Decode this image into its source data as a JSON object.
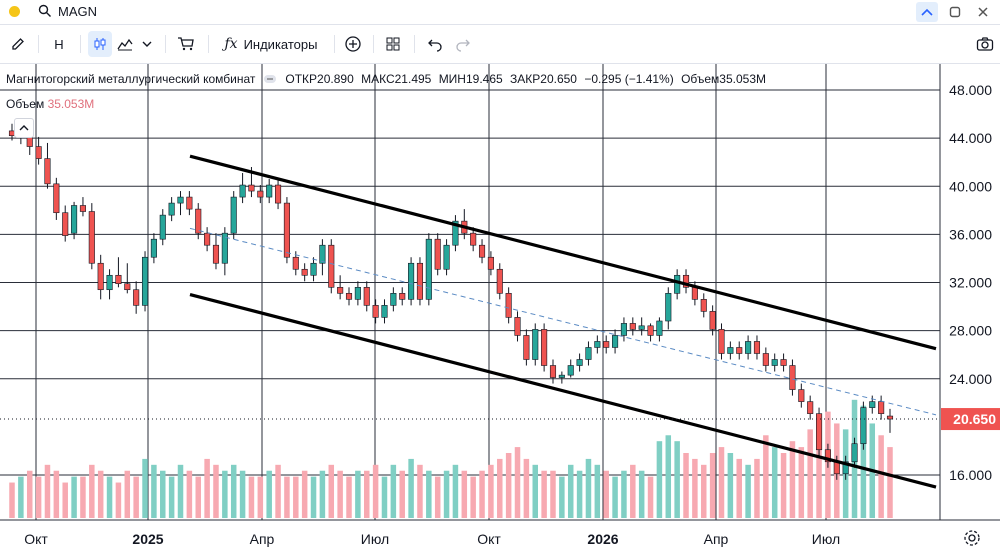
{
  "header": {
    "symbol": "MAGN"
  },
  "toolbar": {
    "interval": "H",
    "indicators_label": "Индикаторы"
  },
  "legend": {
    "name": "Магнитогорский металлургический комбинат",
    "open": "ОТКР20.890",
    "high": "МАКС21.495",
    "low": "МИН19.465",
    "close": "ЗАКР20.650",
    "change": "−0.295 (−1.41%)",
    "volume": "Объем35.053M"
  },
  "volume_legend": {
    "label": "Объем",
    "value": "35.053M"
  },
  "icons": [
    "pencil-icon",
    "candles-icon",
    "area-chart-icon",
    "chevron-down-icon",
    "cart-icon",
    "fx-icon",
    "plus-circle-icon",
    "grid-icon",
    "undo-icon",
    "redo-icon",
    "camera-icon",
    "search-icon",
    "settings-icon"
  ],
  "colors": {
    "up": "#26a69a",
    "down": "#ef5350",
    "vol_up": "#80cfc4",
    "vol_down": "#f7a9b1",
    "last_price_bg": "#ef5350",
    "dashed_line": "#5b8bc4"
  },
  "chart_data": {
    "type": "candlestick",
    "title": "Магнитогорский металлургический комбинат",
    "y_ticks": [
      "48.000",
      "44.000",
      "40.000",
      "36.000",
      "32.000",
      "28.000",
      "24.000",
      "16.000"
    ],
    "ylim": [
      14.0,
      50.0
    ],
    "x_ticks": [
      "Окт",
      "2025",
      "Апр",
      "Июл",
      "Окт",
      "2026",
      "Апр",
      "Июл"
    ],
    "last_price": "20.650",
    "ohlc": [
      [
        44.6,
        45.2,
        43.8,
        44.2
      ],
      [
        44.2,
        45.6,
        43.5,
        45.0
      ],
      [
        45.0,
        45.5,
        42.6,
        43.3
      ],
      [
        43.3,
        44.1,
        41.8,
        42.3
      ],
      [
        42.3,
        43.6,
        39.8,
        40.2
      ],
      [
        40.2,
        40.7,
        37.2,
        37.8
      ],
      [
        37.8,
        38.4,
        35.4,
        35.9
      ],
      [
        36.1,
        38.7,
        35.6,
        38.4
      ],
      [
        38.4,
        39.1,
        37.5,
        37.9
      ],
      [
        37.9,
        38.6,
        33.1,
        33.6
      ],
      [
        33.6,
        34.3,
        30.6,
        31.4
      ],
      [
        31.4,
        33.1,
        30.6,
        32.6
      ],
      [
        32.6,
        34.1,
        31.6,
        31.9
      ],
      [
        31.9,
        33.6,
        31.1,
        31.4
      ],
      [
        31.4,
        32.1,
        29.4,
        30.1
      ],
      [
        30.1,
        34.6,
        29.6,
        34.1
      ],
      [
        34.1,
        36.1,
        33.6,
        35.6
      ],
      [
        35.6,
        38.1,
        35.1,
        37.6
      ],
      [
        37.6,
        39.1,
        37.1,
        38.6
      ],
      [
        38.6,
        39.6,
        37.6,
        39.1
      ],
      [
        39.1,
        39.6,
        37.6,
        38.1
      ],
      [
        38.1,
        38.6,
        35.6,
        36.1
      ],
      [
        36.1,
        36.6,
        34.6,
        35.1
      ],
      [
        35.1,
        36.1,
        33.1,
        33.6
      ],
      [
        33.6,
        36.6,
        32.6,
        36.1
      ],
      [
        36.1,
        39.6,
        35.6,
        39.1
      ],
      [
        39.1,
        41.1,
        38.6,
        40.1
      ],
      [
        40.1,
        41.6,
        39.1,
        39.6
      ],
      [
        39.6,
        40.1,
        38.6,
        39.1
      ],
      [
        39.1,
        40.6,
        38.6,
        40.1
      ],
      [
        40.1,
        40.6,
        38.1,
        38.6
      ],
      [
        38.6,
        39.1,
        33.6,
        34.1
      ],
      [
        34.1,
        34.6,
        32.6,
        33.1
      ],
      [
        33.1,
        33.6,
        32.1,
        32.6
      ],
      [
        32.6,
        34.1,
        32.1,
        33.6
      ],
      [
        33.6,
        35.6,
        32.6,
        35.1
      ],
      [
        35.1,
        35.6,
        31.1,
        31.6
      ],
      [
        31.6,
        32.6,
        30.6,
        31.1
      ],
      [
        31.1,
        31.6,
        30.1,
        30.6
      ],
      [
        30.6,
        32.1,
        30.1,
        31.6
      ],
      [
        31.6,
        32.1,
        29.6,
        30.1
      ],
      [
        30.1,
        30.6,
        28.6,
        29.1
      ],
      [
        29.1,
        30.6,
        28.6,
        30.1
      ],
      [
        30.1,
        31.6,
        29.6,
        31.1
      ],
      [
        31.1,
        31.6,
        30.1,
        30.6
      ],
      [
        30.6,
        34.1,
        30.1,
        33.6
      ],
      [
        33.6,
        34.1,
        30.1,
        30.6
      ],
      [
        30.6,
        36.1,
        30.1,
        35.6
      ],
      [
        35.6,
        36.1,
        32.6,
        33.1
      ],
      [
        33.1,
        35.6,
        32.6,
        35.1
      ],
      [
        35.1,
        37.6,
        34.6,
        37.1
      ],
      [
        37.1,
        38.1,
        35.6,
        36.1
      ],
      [
        36.1,
        36.6,
        34.6,
        35.1
      ],
      [
        35.1,
        35.6,
        33.6,
        34.1
      ],
      [
        34.1,
        34.6,
        32.6,
        33.1
      ],
      [
        33.1,
        33.6,
        30.6,
        31.1
      ],
      [
        31.1,
        31.6,
        28.6,
        29.1
      ],
      [
        29.1,
        29.6,
        27.1,
        27.6
      ],
      [
        27.6,
        28.1,
        25.1,
        25.6
      ],
      [
        25.6,
        28.6,
        25.1,
        28.1
      ],
      [
        28.1,
        28.6,
        24.6,
        25.1
      ],
      [
        25.1,
        25.6,
        23.6,
        24.1
      ],
      [
        24.1,
        24.6,
        23.6,
        24.3
      ],
      [
        24.3,
        25.6,
        24.1,
        25.1
      ],
      [
        25.1,
        26.1,
        24.6,
        25.6
      ],
      [
        25.6,
        27.1,
        25.1,
        26.6
      ],
      [
        26.6,
        27.6,
        26.1,
        27.1
      ],
      [
        27.1,
        27.6,
        26.1,
        26.6
      ],
      [
        26.6,
        28.1,
        26.1,
        27.6
      ],
      [
        27.6,
        29.1,
        27.1,
        28.6
      ],
      [
        28.6,
        29.1,
        27.6,
        28.1
      ],
      [
        28.1,
        29.1,
        27.6,
        28.4
      ],
      [
        28.4,
        28.6,
        27.1,
        27.6
      ],
      [
        27.6,
        29.1,
        27.1,
        28.8
      ],
      [
        28.8,
        31.6,
        28.1,
        31.1
      ],
      [
        31.1,
        33.1,
        30.6,
        32.6
      ],
      [
        32.6,
        33.1,
        31.1,
        31.6
      ],
      [
        31.6,
        32.1,
        30.1,
        30.6
      ],
      [
        30.6,
        31.1,
        29.1,
        29.6
      ],
      [
        29.6,
        30.1,
        27.6,
        28.1
      ],
      [
        28.1,
        28.6,
        25.6,
        26.1
      ],
      [
        26.1,
        27.1,
        25.6,
        26.6
      ],
      [
        26.6,
        27.1,
        25.6,
        26.1
      ],
      [
        26.1,
        27.6,
        25.6,
        27.1
      ],
      [
        27.1,
        27.6,
        25.6,
        26.1
      ],
      [
        26.1,
        26.6,
        24.6,
        25.1
      ],
      [
        25.1,
        26.1,
        24.6,
        25.6
      ],
      [
        25.6,
        26.1,
        24.6,
        25.1
      ],
      [
        25.1,
        25.6,
        22.6,
        23.1
      ],
      [
        23.1,
        23.6,
        21.6,
        22.1
      ],
      [
        22.1,
        22.6,
        20.6,
        21.1
      ],
      [
        21.1,
        21.6,
        17.6,
        18.1
      ],
      [
        18.1,
        18.6,
        16.6,
        17.1
      ],
      [
        17.1,
        17.6,
        15.6,
        16.1
      ],
      [
        16.1,
        17.6,
        15.6,
        17.1
      ],
      [
        17.1,
        19.1,
        16.6,
        18.6
      ],
      [
        18.6,
        22.1,
        18.1,
        21.6
      ],
      [
        21.6,
        22.6,
        21.1,
        22.1
      ],
      [
        22.1,
        22.6,
        20.6,
        21.1
      ],
      [
        20.9,
        21.5,
        19.5,
        20.65
      ]
    ],
    "volume": [
      6,
      7,
      8,
      7,
      9,
      8,
      6,
      7,
      7,
      9,
      8,
      7,
      6,
      8,
      7,
      10,
      9,
      8,
      7,
      9,
      8,
      7,
      10,
      9,
      8,
      9,
      8,
      7,
      7,
      8,
      9,
      7,
      7,
      8,
      7,
      8,
      9,
      8,
      7,
      8,
      8,
      9,
      7,
      9,
      8,
      10,
      9,
      8,
      7,
      8,
      9,
      8,
      7,
      8,
      9,
      10,
      11,
      12,
      10,
      9,
      8,
      8,
      7,
      9,
      8,
      10,
      9,
      8,
      7,
      8,
      9,
      8,
      7,
      13,
      14,
      13,
      11,
      10,
      9,
      11,
      12,
      11,
      10,
      9,
      10,
      14,
      12,
      11,
      13,
      12,
      15,
      14,
      18,
      16,
      15,
      20,
      19,
      16,
      14,
      12
    ],
    "trend_lines": [
      {
        "style": "solid",
        "from_date": "2025-01",
        "to_date": "2026-07",
        "from_value": 42.5,
        "to_value": 26.5
      },
      {
        "style": "solid",
        "from_date": "2025-01",
        "to_date": "2026-07",
        "from_value": 31.0,
        "to_value": 15.0
      },
      {
        "style": "dashed",
        "from_date": "2025-01",
        "to_date": "2026-07",
        "from_value": 36.5,
        "to_value": 21.0
      }
    ]
  }
}
